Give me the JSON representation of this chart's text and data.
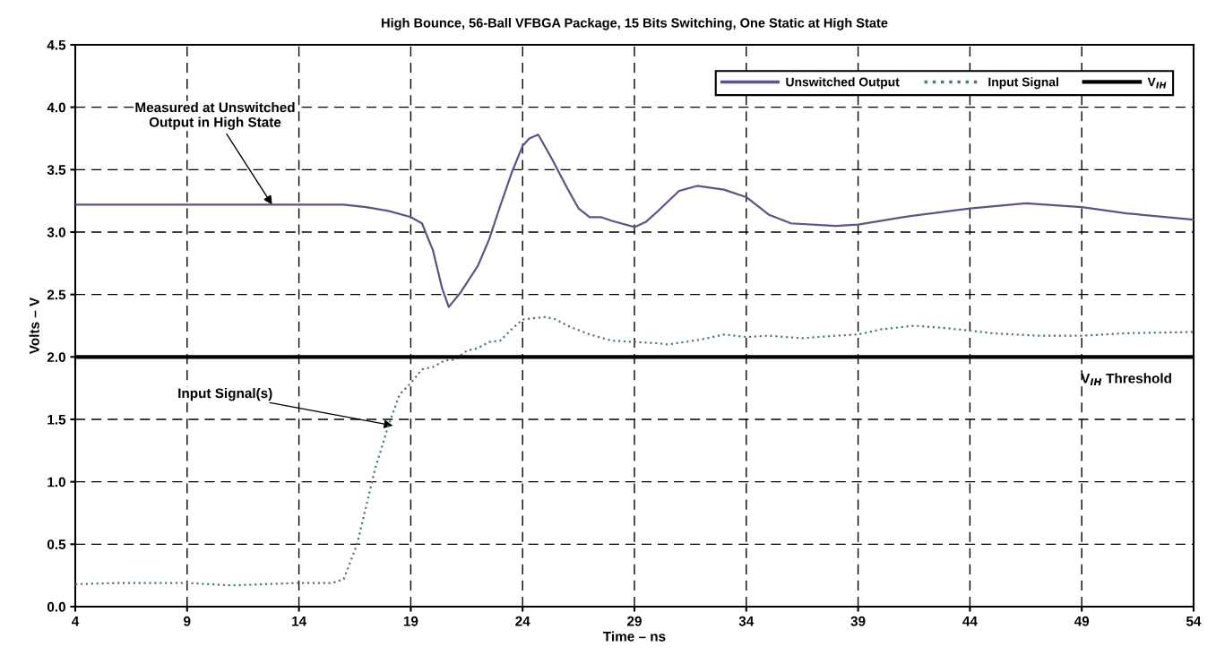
{
  "chart_data": {
    "type": "line",
    "title": "High Bounce, 56-Ball VFBGA Package, 15 Bits Switching, One Static at High State",
    "xlabel": "Time – ns",
    "ylabel": "Volts – V",
    "series": [
      {
        "name": "Unswitched Output",
        "color": "#5c5484",
        "line_style": "solid",
        "x": [
          4,
          6,
          8,
          10,
          12,
          14,
          16,
          17,
          18,
          19,
          19.5,
          20,
          20.4,
          20.7,
          21.2,
          22,
          22.5,
          23,
          23.5,
          24,
          24.3,
          24.7,
          25.3,
          26,
          26.5,
          27,
          27.5,
          28,
          29,
          29.5,
          30,
          31,
          31.8,
          33,
          34,
          35,
          36,
          38,
          39,
          41,
          44,
          46.5,
          49,
          51,
          54
        ],
        "values": [
          3.22,
          3.22,
          3.22,
          3.22,
          3.22,
          3.22,
          3.22,
          3.2,
          3.17,
          3.12,
          3.07,
          2.85,
          2.55,
          2.4,
          2.51,
          2.73,
          2.94,
          3.21,
          3.47,
          3.69,
          3.75,
          3.78,
          3.59,
          3.35,
          3.19,
          3.12,
          3.12,
          3.09,
          3.04,
          3.08,
          3.16,
          3.33,
          3.37,
          3.34,
          3.28,
          3.14,
          3.07,
          3.05,
          3.06,
          3.12,
          3.19,
          3.23,
          3.2,
          3.15,
          3.1
        ]
      },
      {
        "name": "Input Signal",
        "color": "#4f7f5c",
        "line_style": "dotted",
        "x": [
          4,
          6,
          9,
          11,
          14,
          15.5,
          16,
          16.6,
          17.4,
          18,
          18.5,
          19,
          19.5,
          20,
          20.5,
          21,
          21.5,
          22,
          22.5,
          23,
          23.5,
          24,
          25,
          25.5,
          26,
          27,
          28,
          29,
          30,
          30.5,
          32,
          33,
          34,
          35,
          36.5,
          38,
          39,
          40,
          41.5,
          43,
          45,
          47,
          49,
          51,
          54
        ],
        "values": [
          0.18,
          0.19,
          0.19,
          0.17,
          0.19,
          0.19,
          0.22,
          0.5,
          1.1,
          1.45,
          1.7,
          1.79,
          1.9,
          1.92,
          1.97,
          1.98,
          2.05,
          2.07,
          2.12,
          2.13,
          2.22,
          2.3,
          2.32,
          2.3,
          2.25,
          2.18,
          2.13,
          2.12,
          2.11,
          2.1,
          2.14,
          2.18,
          2.16,
          2.17,
          2.15,
          2.17,
          2.18,
          2.22,
          2.25,
          2.23,
          2.19,
          2.17,
          2.17,
          2.19,
          2.2
        ]
      },
      {
        "name": "V$_{IH}$",
        "color": "#000000",
        "line_style": "solid",
        "x": [
          4,
          54
        ],
        "values": [
          2.0,
          2.0
        ]
      }
    ],
    "annotations": [
      {
        "text": "Measured at Unswitched\nOutput in High State",
        "x": 12.8,
        "y": 3.22
      },
      {
        "text": "Input Signal(s)",
        "x": 18.2,
        "y": 1.45
      },
      {
        "text": "V$_{IH}$ Threshold",
        "x": 51,
        "y": 2.0
      }
    ],
    "xlim": [
      4,
      54
    ],
    "xticks": [
      4,
      9,
      14,
      19,
      24,
      29,
      34,
      39,
      44,
      49,
      54
    ],
    "ylim": [
      0,
      4.5
    ],
    "yticks": [
      {
        "value": 0,
        "label": "0.0"
      },
      {
        "value": 0.5,
        "label": "0.5"
      },
      {
        "value": 1,
        "label": "1.0"
      },
      {
        "value": 1.5,
        "label": "1.5"
      },
      {
        "value": 2,
        "label": "2.0"
      },
      {
        "value": 2.5,
        "label": "2.5"
      },
      {
        "value": 3,
        "label": "3.0"
      },
      {
        "value": 3.5,
        "label": "3.5"
      },
      {
        "value": 4,
        "label": "4.0"
      },
      {
        "value": 4.5,
        "label": "4.5"
      }
    ],
    "grid": true,
    "legend": "top right"
  }
}
